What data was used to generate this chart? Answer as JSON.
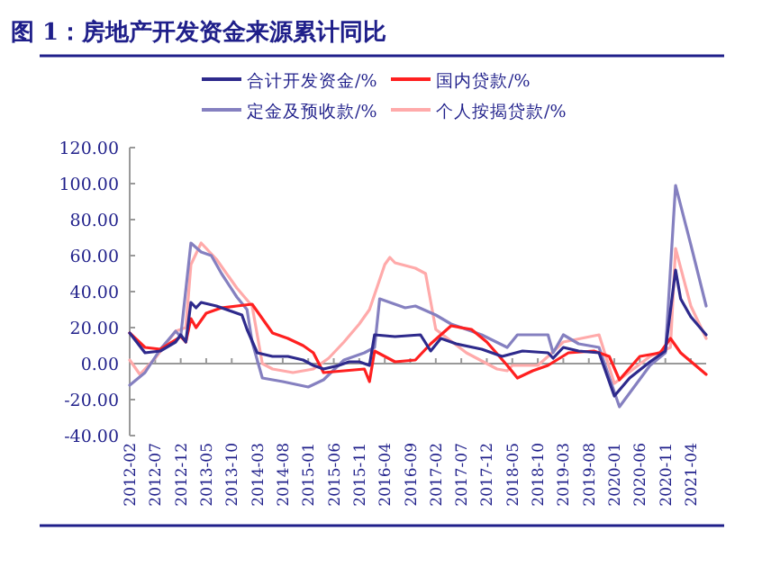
{
  "chart_data": {
    "type": "line",
    "title": "图 1：房地产开发资金来源累计同比",
    "legend": "top",
    "marker": "none",
    "line_style": "solid",
    "ylim": [
      -40,
      120
    ],
    "yticks": [
      {
        "value": -40,
        "label": "-40.00"
      },
      {
        "value": -20,
        "label": "-20.00"
      },
      {
        "value": 0,
        "label": "0.00"
      },
      {
        "value": 20,
        "label": "20.00"
      },
      {
        "value": 40,
        "label": "40.00"
      },
      {
        "value": 60,
        "label": "60.00"
      },
      {
        "value": 80,
        "label": "80.00"
      },
      {
        "value": 100,
        "label": "100.00"
      },
      {
        "value": 120,
        "label": "120.00"
      }
    ],
    "xlim": [
      "2012-02",
      "2021-07"
    ],
    "xticks": [
      "2012-02",
      "2012-07",
      "2012-12",
      "2013-05",
      "2013-10",
      "2014-03",
      "2014-08",
      "2015-01",
      "2015-06",
      "2015-11",
      "2016-04",
      "2016-09",
      "2017-02",
      "2017-07",
      "2017-12",
      "2018-05",
      "2018-10",
      "2019-03",
      "2019-08",
      "2020-01",
      "2020-06",
      "2020-11",
      "2021-04"
    ],
    "series": [
      {
        "name": "合计开发资金/%",
        "color": "#2e2a8c",
        "x": [
          "2012-02",
          "2012-05",
          "2012-08",
          "2012-11",
          "2012-12",
          "2013-01",
          "2013-02",
          "2013-03",
          "2013-04",
          "2013-07",
          "2013-10",
          "2013-12",
          "2014-01",
          "2014-03",
          "2014-06",
          "2014-09",
          "2014-12",
          "2015-02",
          "2015-04",
          "2015-07",
          "2015-09",
          "2015-11",
          "2016-01",
          "2016-02",
          "2016-06",
          "2016-11",
          "2017-01",
          "2017-03",
          "2017-06",
          "2017-11",
          "2018-03",
          "2018-07",
          "2018-12",
          "2019-01",
          "2019-03",
          "2019-06",
          "2019-10",
          "2020-01",
          "2020-04",
          "2020-08",
          "2020-11",
          "2021-01",
          "2021-02",
          "2021-04",
          "2021-07"
        ],
        "values": [
          17,
          6,
          7,
          12,
          16,
          12,
          34,
          31,
          34,
          32,
          29,
          27,
          19,
          6,
          4,
          4,
          2,
          -1,
          -3,
          -1,
          1,
          1,
          -1,
          16,
          15,
          16,
          7,
          14,
          11,
          8,
          4,
          7,
          6,
          3,
          9,
          7,
          6,
          -18,
          -8,
          1,
          7,
          52,
          36,
          26,
          16
        ]
      },
      {
        "name": "国内贷款/%",
        "color": "#ff2020",
        "x": [
          "2012-02",
          "2012-05",
          "2012-08",
          "2012-12",
          "2013-01",
          "2013-02",
          "2013-03",
          "2013-05",
          "2013-08",
          "2013-11",
          "2014-02",
          "2014-04",
          "2014-06",
          "2014-09",
          "2014-12",
          "2015-02",
          "2015-04",
          "2015-08",
          "2015-12",
          "2016-01",
          "2016-02",
          "2016-06",
          "2016-10",
          "2017-01",
          "2017-05",
          "2017-09",
          "2017-12",
          "2018-04",
          "2018-06",
          "2018-09",
          "2018-12",
          "2019-04",
          "2019-09",
          "2019-12",
          "2020-02",
          "2020-06",
          "2020-10",
          "2020-12",
          "2021-02",
          "2021-07"
        ],
        "values": [
          17,
          9,
          8,
          15,
          12,
          25,
          20,
          28,
          31,
          32,
          33,
          25,
          17,
          14,
          10,
          6,
          -5,
          -4,
          -3,
          -10,
          7,
          1,
          2,
          11,
          21,
          19,
          12,
          -1,
          -8,
          -4,
          -1,
          6,
          7,
          4,
          -9,
          4,
          6,
          14,
          6,
          -6
        ]
      },
      {
        "name": "定金及预收款/%",
        "color": "#8580c0",
        "x": [
          "2012-02",
          "2012-05",
          "2012-08",
          "2012-11",
          "2012-12",
          "2013-02",
          "2013-04",
          "2013-06",
          "2013-08",
          "2013-11",
          "2014-01",
          "2014-02",
          "2014-04",
          "2014-08",
          "2015-01",
          "2015-04",
          "2015-08",
          "2015-12",
          "2016-02",
          "2016-03",
          "2016-08",
          "2016-10",
          "2017-02",
          "2017-05",
          "2017-11",
          "2018-04",
          "2018-06",
          "2018-12",
          "2019-01",
          "2019-03",
          "2019-06",
          "2019-10",
          "2020-02",
          "2020-08",
          "2020-11",
          "2021-01",
          "2021-04",
          "2021-07"
        ],
        "values": [
          -12,
          -5,
          8,
          18,
          15,
          67,
          62,
          60,
          50,
          37,
          30,
          12,
          -8,
          -10,
          -13,
          -9,
          2,
          6,
          9,
          36,
          31,
          32,
          27,
          22,
          16,
          9,
          16,
          16,
          6,
          16,
          11,
          9,
          -24,
          -1,
          6,
          99,
          66,
          32
        ]
      },
      {
        "name": "个人按揭贷款/%",
        "color": "#ffaaaa",
        "x": [
          "2012-02",
          "2012-04",
          "2012-07",
          "2012-11",
          "2013-01",
          "2013-02",
          "2013-04",
          "2013-07",
          "2013-11",
          "2014-02",
          "2014-04",
          "2014-06",
          "2014-10",
          "2015-02",
          "2015-05",
          "2015-08",
          "2015-11",
          "2016-01",
          "2016-04",
          "2016-05",
          "2016-06",
          "2016-10",
          "2016-12",
          "2017-02",
          "2017-08",
          "2018-02",
          "2018-04",
          "2018-05",
          "2018-10",
          "2018-12",
          "2019-03",
          "2019-10",
          "2020-01",
          "2020-08",
          "2020-12",
          "2021-01",
          "2021-04",
          "2021-07"
        ],
        "values": [
          2,
          -6,
          3,
          18,
          20,
          55,
          67,
          58,
          42,
          32,
          0,
          -3,
          -5,
          -3,
          3,
          12,
          22,
          30,
          55,
          59,
          56,
          53,
          50,
          19,
          6,
          -3,
          -4,
          -1,
          -1,
          4,
          12,
          16,
          -11,
          4,
          9,
          64,
          32,
          14
        ]
      }
    ]
  }
}
